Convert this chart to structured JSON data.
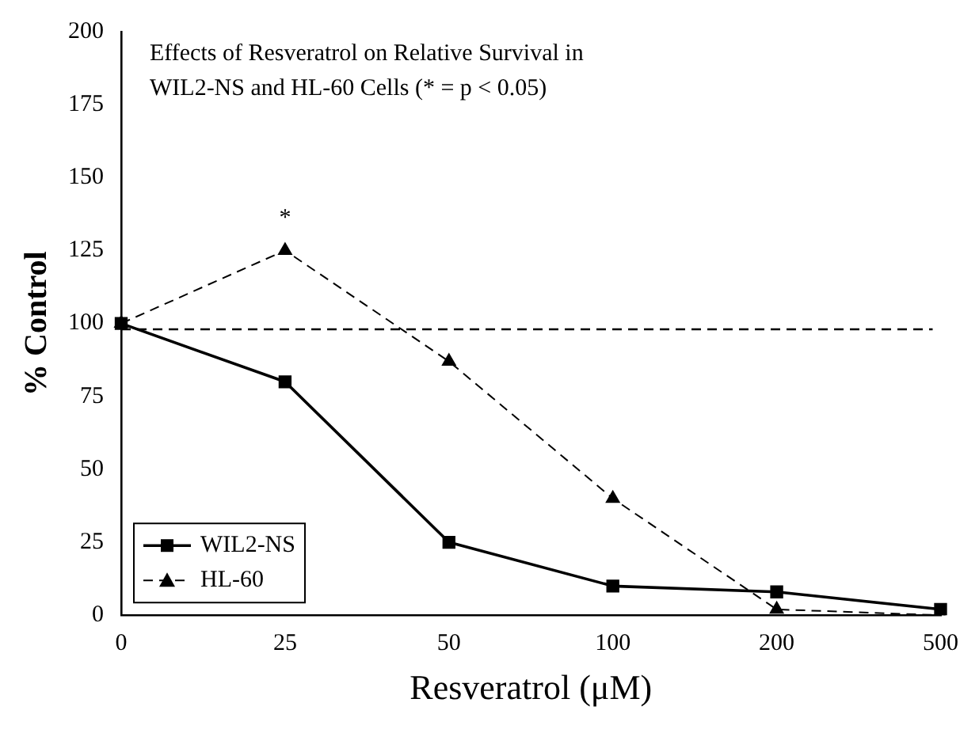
{
  "chart_data": {
    "type": "line",
    "xlabel": "Resveratrol (μM)",
    "ylabel": "% Control",
    "categories": [
      "0",
      "25",
      "50",
      "100",
      "200",
      "500"
    ],
    "series": [
      {
        "name": "WIL2-NS",
        "color": "#000000",
        "values": [
          100,
          80,
          25,
          10,
          8,
          2
        ],
        "marker": "square",
        "line_style": "solid"
      },
      {
        "name": "HL-60",
        "color": "#000000",
        "values": [
          100,
          125,
          87,
          40,
          2,
          0
        ],
        "marker": "triangle",
        "line_style": "dashed"
      }
    ],
    "ylim": [
      0,
      200
    ],
    "yticks": [
      0,
      25,
      50,
      75,
      100,
      125,
      150,
      175,
      200
    ],
    "ref_lines": [
      {
        "axis": "y",
        "value": 98,
        "line_style": "dashed",
        "color": "#000000"
      }
    ],
    "annotations": [
      "Effects of Resveratrol on Relative Survival in WIL2-NS and HL-60 Cells (* = p < 0.05)",
      {
        "text": "*",
        "x": "25",
        "y": 125
      }
    ],
    "grid": false,
    "legend": "bottom left"
  }
}
